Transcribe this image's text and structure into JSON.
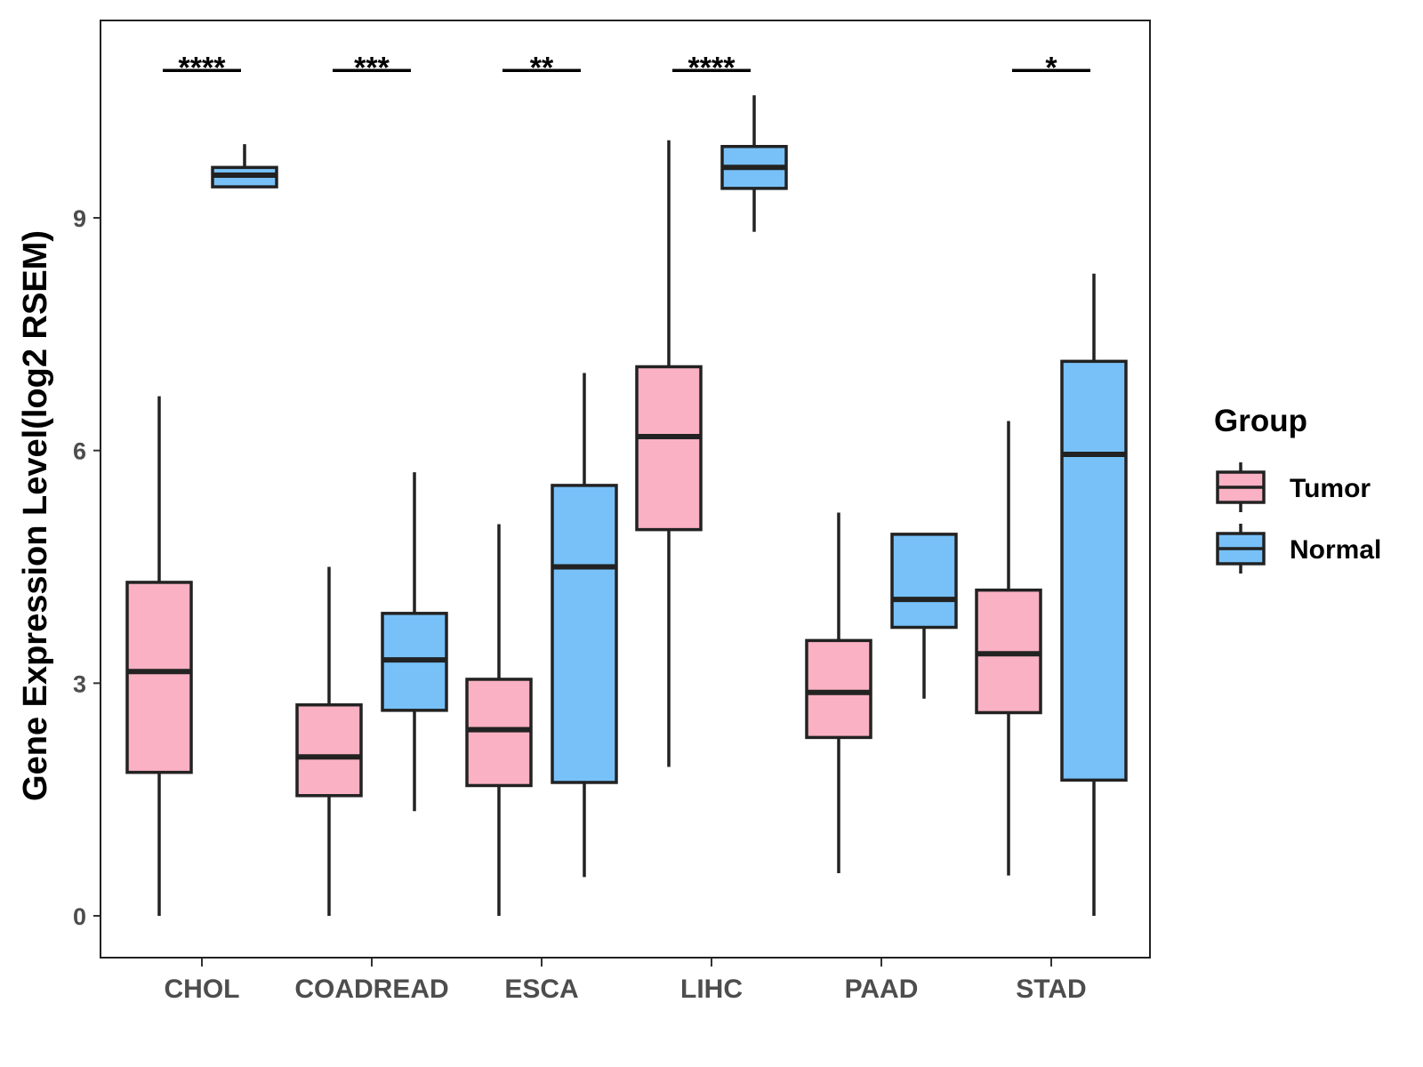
{
  "chart_data": {
    "type": "boxplot",
    "title": "",
    "xlabel": "",
    "ylabel": "Gene Expression Level(log2 RSEM)",
    "ylim": [
      -0.5,
      11.5
    ],
    "yticks": [
      0,
      3,
      6,
      9
    ],
    "grid": false,
    "legend": {
      "title": "Group",
      "position": "right",
      "entries": [
        {
          "name": "Tumor",
          "color": "#F9B1C3"
        },
        {
          "name": "Normal",
          "color": "#77C1F8"
        }
      ]
    },
    "categories": [
      "CHOL",
      "COADREAD",
      "ESCA",
      "LIHC",
      "PAAD",
      "STAD"
    ],
    "series": [
      {
        "name": "Tumor",
        "color": "#F9B1C3",
        "boxes": [
          {
            "min": 0.0,
            "q1": 1.85,
            "median": 3.15,
            "q3": 4.3,
            "max": 6.7
          },
          {
            "min": 0.0,
            "q1": 1.55,
            "median": 2.05,
            "q3": 2.72,
            "max": 4.5
          },
          {
            "min": 0.0,
            "q1": 1.68,
            "median": 2.4,
            "q3": 3.05,
            "max": 5.05
          },
          {
            "min": 1.92,
            "q1": 4.98,
            "median": 6.18,
            "q3": 7.08,
            "max": 10.0
          },
          {
            "min": 0.55,
            "q1": 2.3,
            "median": 2.88,
            "q3": 3.55,
            "max": 5.2
          },
          {
            "min": 0.52,
            "q1": 2.62,
            "median": 3.38,
            "q3": 4.2,
            "max": 6.38
          }
        ]
      },
      {
        "name": "Normal",
        "color": "#77C1F8",
        "boxes": [
          {
            "min": 9.4,
            "q1": 9.4,
            "median": 9.55,
            "q3": 9.65,
            "max": 9.95
          },
          {
            "min": 1.35,
            "q1": 2.65,
            "median": 3.3,
            "q3": 3.9,
            "max": 5.72
          },
          {
            "min": 0.5,
            "q1": 1.72,
            "median": 4.5,
            "q3": 5.55,
            "max": 7.0
          },
          {
            "min": 8.82,
            "q1": 9.38,
            "median": 9.65,
            "q3": 9.92,
            "max": 10.58
          },
          {
            "min": 2.8,
            "q1": 3.72,
            "median": 4.08,
            "q3": 4.92,
            "max": 4.92
          },
          {
            "min": 0.0,
            "q1": 1.75,
            "median": 5.95,
            "q3": 7.15,
            "max": 8.28
          }
        ]
      }
    ],
    "significance": [
      {
        "category": "CHOL",
        "label": "****"
      },
      {
        "category": "COADREAD",
        "label": "***"
      },
      {
        "category": "ESCA",
        "label": "**"
      },
      {
        "category": "LIHC",
        "label": "****"
      },
      {
        "category": "PAAD",
        "label": ""
      },
      {
        "category": "STAD",
        "label": "*"
      }
    ],
    "significance_y": 10.9
  }
}
